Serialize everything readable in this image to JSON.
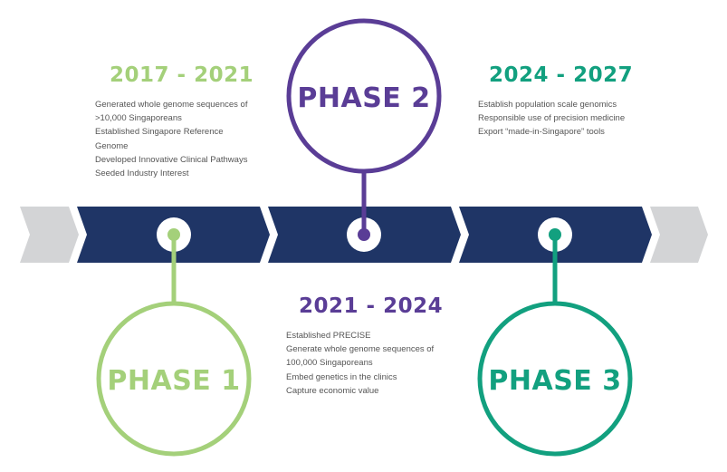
{
  "colors": {
    "arrow_gray": "#d3d4d6",
    "arrow_navy": "#1f3566",
    "phase1": "#a4d07a",
    "phase2": "#5a3d96",
    "phase3": "#12a07f"
  },
  "phases": [
    {
      "label": "PHASE 1",
      "years": "2017 - 2021",
      "items": [
        "Generated whole genome sequences of",
        ">10,000 Singaporeans",
        "Established Singapore Reference",
        "Genome",
        "Developed Innovative Clinical Pathways",
        "Seeded Industry Interest"
      ]
    },
    {
      "label": "PHASE 2",
      "years": "2021 - 2024",
      "items": [
        "Established PRECISE",
        "Generate whole genome sequences of",
        "100,000 Singaporeans",
        "Embed genetics in the clinics",
        "Capture economic value"
      ]
    },
    {
      "label": "PHASE 3",
      "years": "2024 - 2027",
      "items": [
        "Establish population scale genomics",
        "Responsible use of precision medicine",
        "Export “made-in-Singapore” tools"
      ]
    }
  ]
}
